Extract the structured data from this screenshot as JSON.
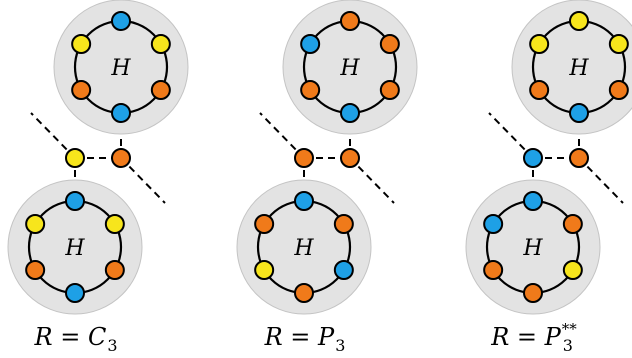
{
  "hub_label": "H",
  "colors": {
    "blue": "#1ea0e6",
    "orange": "#f07a1a",
    "yellow": "#f7e51c",
    "hub_fill": "#e3e3e3",
    "hub_stroke": "#c4c4c4"
  },
  "panels": [
    {
      "label": {
        "lhs": "R",
        "eq": " = ",
        "sym": "C",
        "sub": "3",
        "sup": ""
      },
      "top_ring": [
        "blue",
        "yellow",
        "orange",
        "blue",
        "orange",
        "yellow"
      ],
      "bottom_ring": [
        "blue",
        "yellow",
        "orange",
        "blue",
        "orange",
        "yellow"
      ],
      "links": [
        "yellow",
        "orange"
      ]
    },
    {
      "label": {
        "lhs": "R",
        "eq": " = ",
        "sym": "P",
        "sub": "3",
        "sup": ""
      },
      "top_ring": [
        "orange",
        "orange",
        "orange",
        "blue",
        "orange",
        "blue"
      ],
      "bottom_ring": [
        "blue",
        "orange",
        "blue",
        "orange",
        "yellow",
        "orange"
      ],
      "links": [
        "orange",
        "orange"
      ]
    },
    {
      "label": {
        "lhs": "R",
        "eq": " = ",
        "sym": "P",
        "sub": "3",
        "sup": "**"
      },
      "top_ring": [
        "yellow",
        "yellow",
        "orange",
        "blue",
        "orange",
        "yellow"
      ],
      "bottom_ring": [
        "blue",
        "orange",
        "yellow",
        "orange",
        "orange",
        "blue"
      ],
      "links": [
        "blue",
        "orange"
      ]
    }
  ]
}
